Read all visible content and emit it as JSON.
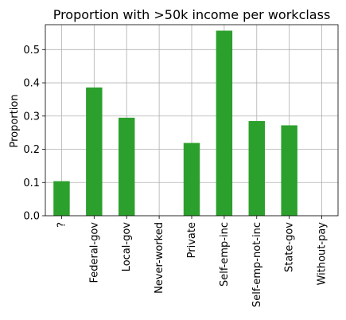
{
  "chart_data": {
    "type": "bar",
    "title": "Proportion with >50k income per workclass",
    "xlabel": "",
    "ylabel": "Proportion",
    "categories": [
      "?",
      "Federal-gov",
      "Local-gov",
      "Never-worked",
      "Private",
      "Self-emp-inc",
      "Self-emp-not-inc",
      "State-gov",
      "Without-pay"
    ],
    "values": [
      0.104,
      0.386,
      0.295,
      0.0,
      0.219,
      0.557,
      0.285,
      0.272,
      0.0
    ],
    "ylim": [
      0,
      0.575
    ],
    "yticks": [
      "0.0",
      "0.1",
      "0.2",
      "0.3",
      "0.4",
      "0.5"
    ],
    "yticks_values": [
      0.0,
      0.1,
      0.2,
      0.3,
      0.4,
      0.5
    ],
    "grid": true,
    "bar_color": "#2ca02c"
  }
}
